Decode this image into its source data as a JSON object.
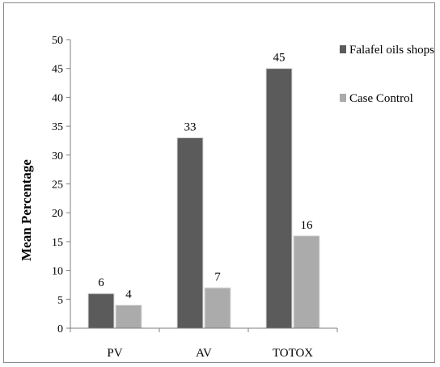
{
  "chart_data": {
    "type": "bar",
    "categories": [
      "PV",
      "AV",
      "TOTOX"
    ],
    "series": [
      {
        "name": "Falafel oils shops",
        "values": [
          6,
          33,
          45
        ],
        "color": "#5b5b5b"
      },
      {
        "name": "Case Control",
        "values": [
          4,
          7,
          16
        ],
        "color": "#ababab"
      }
    ],
    "data_labels": [
      [
        "6",
        "33",
        "45"
      ],
      [
        "4",
        "7",
        "16"
      ]
    ],
    "title": "",
    "xlabel": "",
    "ylabel": "Mean Percentage",
    "ylim": [
      0,
      50
    ],
    "yticks": [
      0,
      5,
      10,
      15,
      20,
      25,
      30,
      35,
      40,
      45,
      50
    ],
    "grid": false,
    "legend_position": "top-right"
  }
}
